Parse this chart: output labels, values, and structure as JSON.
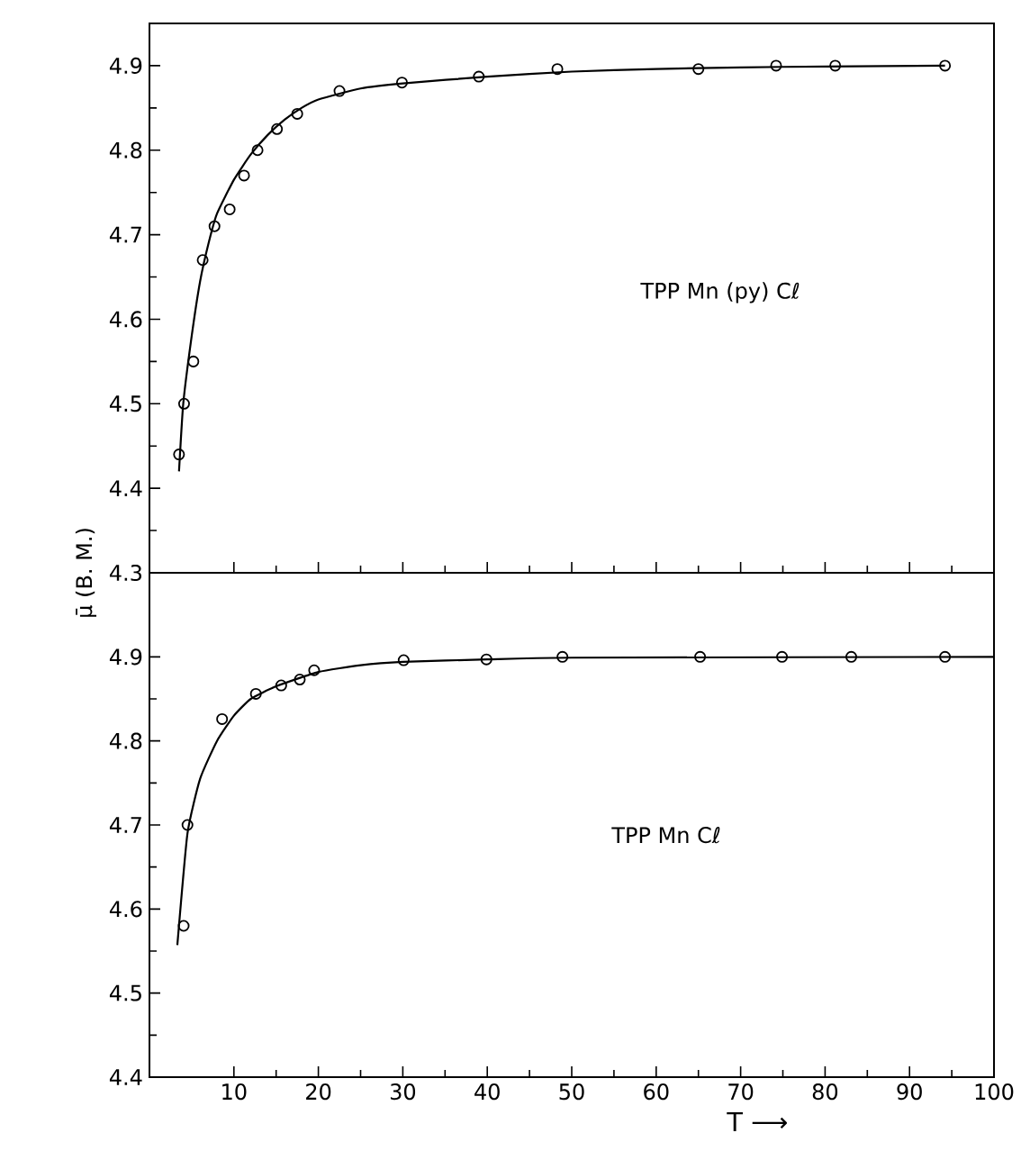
{
  "chart_data": [
    {
      "type": "scatter",
      "ylabel": "μ̄ (B. M.)",
      "annotations": [
        "TPP Mn (py) Cℓ"
      ],
      "xlim": [
        0,
        100
      ],
      "ylim": [
        4.3,
        4.95
      ],
      "tick_labels": "y",
      "xticks": [
        10,
        20,
        30,
        40,
        50,
        60,
        70,
        80,
        90,
        100
      ],
      "yticks": [
        4.3,
        4.4,
        4.5,
        4.6,
        4.7,
        4.8,
        4.9
      ],
      "series": [
        {
          "marker": "circle",
          "color": "#000000",
          "x": [
            3.5,
            4.1,
            5.2,
            6.3,
            7.7,
            9.5,
            11.2,
            12.8,
            15.1,
            17.5,
            22.5,
            29.9,
            39,
            48.3,
            65,
            74.2,
            81.2,
            94.2
          ],
          "values": [
            4.44,
            4.5,
            4.55,
            4.67,
            4.71,
            4.73,
            4.77,
            4.8,
            4.825,
            4.843,
            4.87,
            4.88,
            4.887,
            4.896,
            4.896,
            4.9,
            4.9,
            4.9
          ]
        },
        {
          "type": "line",
          "marker": "none",
          "color": "#000000",
          "x": [
            3.5,
            4,
            5,
            6,
            7,
            8,
            10,
            12,
            14,
            16,
            18,
            20,
            25,
            30,
            40,
            50,
            60,
            70,
            80,
            94.2
          ],
          "values": [
            4.42,
            4.5,
            4.58,
            4.645,
            4.69,
            4.725,
            4.765,
            4.795,
            4.818,
            4.836,
            4.85,
            4.86,
            4.873,
            4.879,
            4.887,
            4.893,
            4.896,
            4.898,
            4.899,
            4.9
          ]
        }
      ]
    },
    {
      "type": "scatter",
      "xlabel": "T ⟶",
      "annotations": [
        "TPP Mn Cℓ"
      ],
      "xlim": [
        0,
        100
      ],
      "ylim": [
        4.4,
        5.0
      ],
      "xticks": [
        10,
        20,
        30,
        40,
        50,
        60,
        70,
        80,
        90,
        100
      ],
      "yticks": [
        4.4,
        4.5,
        4.6,
        4.7,
        4.8,
        4.9
      ],
      "series": [
        {
          "marker": "circle",
          "color": "#000000",
          "x": [
            4.05,
            4.5,
            8.6,
            12.6,
            15.6,
            17.8,
            19.5,
            30.1,
            39.9,
            48.9,
            65.2,
            74.9,
            83.1,
            94.2
          ],
          "values": [
            4.58,
            4.7,
            4.826,
            4.856,
            4.866,
            4.873,
            4.884,
            4.896,
            4.897,
            4.9,
            4.9,
            4.9,
            4.9,
            4.9
          ]
        },
        {
          "type": "line",
          "marker": "none",
          "color": "#000000",
          "x": [
            3.3,
            4.5,
            6,
            8,
            10,
            12,
            15,
            20,
            25,
            30,
            40,
            50,
            100
          ],
          "values": [
            4.557,
            4.69,
            4.755,
            4.8,
            4.83,
            4.85,
            4.865,
            4.882,
            4.89,
            4.894,
            4.897,
            4.899,
            4.9
          ]
        }
      ]
    }
  ]
}
